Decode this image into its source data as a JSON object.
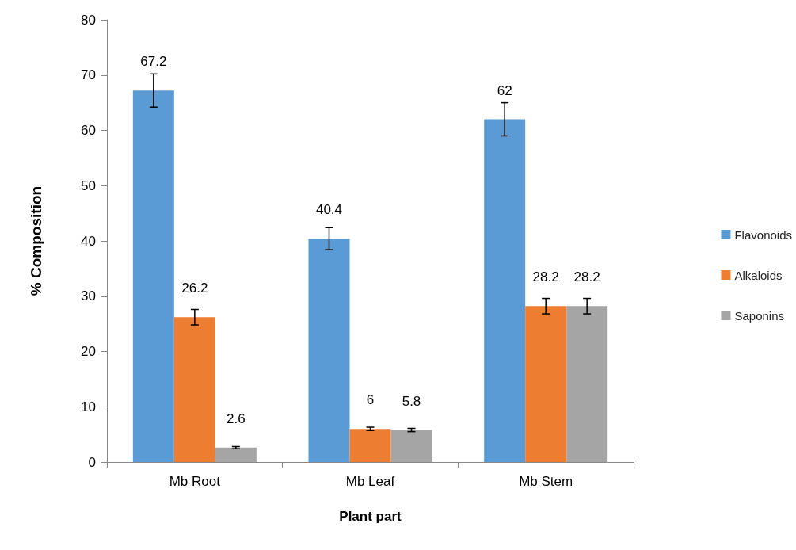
{
  "chart_data": {
    "type": "bar",
    "xlabel": "Plant part",
    "ylabel": "% Composition",
    "categories": [
      "Mb Root",
      "Mb Leaf",
      "Mb Stem"
    ],
    "series": [
      {
        "name": "Flavonoids",
        "color": "#5b9bd5",
        "values": [
          67.2,
          40.4,
          62
        ],
        "errors": [
          3,
          2,
          3
        ]
      },
      {
        "name": "Alkaloids",
        "color": "#ed7d31",
        "values": [
          26.2,
          6,
          28.2
        ],
        "errors": [
          1.4,
          0.3,
          1.4
        ]
      },
      {
        "name": "Saponins",
        "color": "#a5a5a5",
        "values": [
          2.6,
          5.8,
          28.2
        ],
        "errors": [
          0.2,
          0.3,
          1.4
        ]
      }
    ],
    "ylim": [
      0,
      80
    ],
    "yticks": [
      0,
      10,
      20,
      30,
      40,
      50,
      60,
      70,
      80
    ],
    "grid": false,
    "legend": "right",
    "data_labels": true
  }
}
